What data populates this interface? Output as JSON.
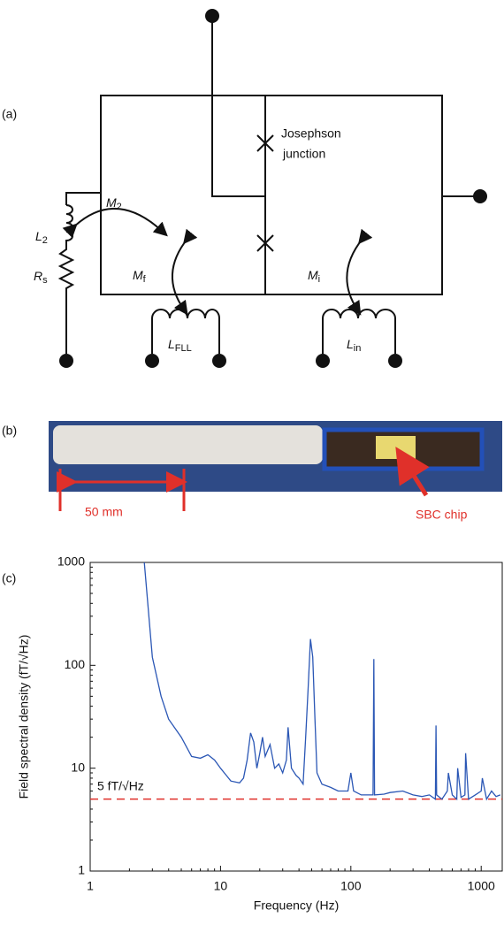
{
  "panel_labels": [
    "(a)",
    "(b)",
    "(c)"
  ],
  "circuit": {
    "junction_label": [
      "Josephson",
      "junction"
    ],
    "labels": [
      {
        "symbol": "M",
        "subscript": "2"
      },
      {
        "symbol": "L",
        "subscript": "2"
      },
      {
        "symbol": "R",
        "subscript": "s"
      },
      {
        "symbol": "M",
        "subscript": "f"
      },
      {
        "symbol": "M",
        "subscript": "i"
      },
      {
        "symbol": "L",
        "subscript": "FLL"
      },
      {
        "symbol": "L",
        "subscript": "in"
      }
    ]
  },
  "photo": {
    "scale_label": "50  mm",
    "chip_label": "SBC chip"
  },
  "chart_data": {
    "type": "line",
    "xlabel": "Frequency (Hz)",
    "ylabel": "Field spectral density (fT/√Hz)",
    "xscale": "log",
    "yscale": "log",
    "xlim": [
      1,
      1450
    ],
    "ylim": [
      1,
      1000
    ],
    "xticks": [
      1,
      10,
      100,
      1000
    ],
    "yticks": [
      1,
      10,
      100,
      1000
    ],
    "color": "#2b57b5",
    "x": [
      2.6,
      3,
      3.5,
      4,
      5,
      6,
      7,
      8,
      9,
      10,
      12,
      14,
      15,
      16,
      17,
      18,
      19,
      20,
      21,
      22,
      24,
      26,
      28,
      30,
      32,
      33,
      35,
      38,
      40,
      43,
      45,
      47,
      49,
      51,
      53,
      55,
      60,
      70,
      80,
      95,
      100,
      105,
      120,
      140,
      148,
      150,
      152,
      180,
      200,
      250,
      300,
      350,
      400,
      445,
      450,
      455,
      500,
      550,
      560,
      600,
      650,
      660,
      700,
      750,
      760,
      800,
      900,
      1000,
      1020,
      1100,
      1200,
      1300,
      1400
    ],
    "values": [
      1000,
      120,
      50,
      30,
      20,
      13,
      12.5,
      13.5,
      12,
      10,
      7.5,
      7.2,
      8,
      12,
      22,
      18,
      10,
      14,
      20,
      13,
      17,
      10,
      11,
      9,
      12,
      25,
      10,
      8.5,
      8,
      7,
      20,
      60,
      180,
      120,
      30,
      9,
      7,
      6.5,
      6,
      6,
      9,
      6,
      5.5,
      5.5,
      5.5,
      115,
      5.5,
      5.6,
      5.8,
      6,
      5.5,
      5.3,
      5.5,
      5,
      26,
      5.5,
      5,
      6,
      9,
      5.5,
      5,
      10,
      5.2,
      5.5,
      14,
      5,
      5.5,
      6,
      8,
      5,
      6,
      5.3,
      5.5
    ],
    "reference_line": {
      "value": 5,
      "label": "5 fT/√Hz",
      "color": "#e0302a"
    }
  }
}
